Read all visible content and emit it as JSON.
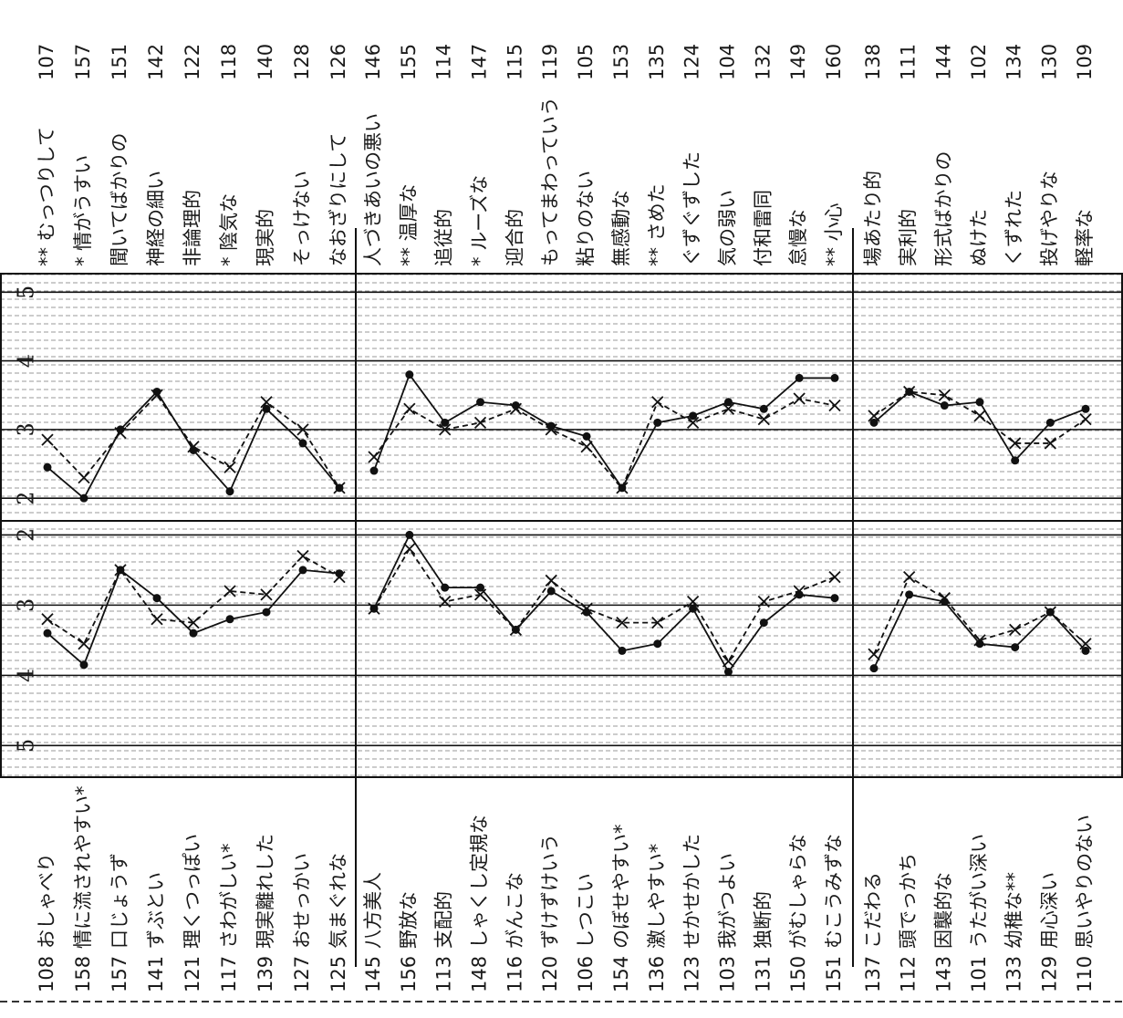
{
  "chart_data": [
    {
      "type": "line",
      "left_ids": [
        "108",
        "158",
        "157",
        "141",
        "121",
        "117",
        "139",
        "127",
        "125"
      ],
      "categories": [
        "おしゃべり",
        "情に流されやすい*",
        "口じょうず",
        "ずぶとい",
        "理くつっぽい",
        "さわがしい*",
        "現実離れした",
        "おせっかい",
        "気まぐれな"
      ],
      "right_labels": [
        "** むっつりして",
        "* 情がうすい",
        "聞いてばかりの",
        "神経の細い",
        "非論理的",
        "* 陰気な",
        "現実的",
        "そっけない",
        "なおざりにして"
      ],
      "right_ids": [
        "107",
        "157",
        "151",
        "142",
        "122",
        "118",
        "140",
        "128",
        "126"
      ],
      "upper": {
        "ylim": [
          1.67,
          5.27
        ],
        "yticks": [
          2,
          3,
          4,
          5
        ],
        "series": [
          {
            "marker": "dot",
            "dashed": false,
            "color": "#111111",
            "values": [
              2.45,
              2.0,
              3.0,
              3.55,
              2.7,
              2.1,
              3.3,
              2.8,
              2.15
            ]
          },
          {
            "marker": "x",
            "dashed": true,
            "color": "#111111",
            "values": [
              2.85,
              2.3,
              2.95,
              3.5,
              2.75,
              2.45,
              3.4,
              3.0,
              2.15
            ]
          }
        ]
      },
      "lower": {
        "ylim": [
          1.8,
          5.45
        ],
        "yticks": [
          2,
          3,
          4,
          5
        ],
        "inverted": true,
        "series": [
          {
            "marker": "dot",
            "dashed": false,
            "color": "#111111",
            "values": [
              3.4,
              3.85,
              2.5,
              2.9,
              3.4,
              3.2,
              3.1,
              2.5,
              2.55
            ]
          },
          {
            "marker": "x",
            "dashed": true,
            "color": "#111111",
            "values": [
              3.2,
              3.55,
              2.5,
              3.2,
              3.25,
              2.8,
              2.85,
              2.3,
              2.6
            ]
          }
        ]
      }
    },
    {
      "type": "line",
      "left_ids": [
        "145",
        "156",
        "113",
        "148",
        "116",
        "120",
        "106",
        "154",
        "136",
        "123",
        "103",
        "131",
        "150",
        "151"
      ],
      "categories": [
        "八方美人",
        "野放な",
        "支配的",
        "しゃくし定規な",
        "がんこな",
        "ずけずけいう",
        "しつこい",
        "のぼせやすい*",
        "激しやすい*",
        "せかせかした",
        "我がつよい",
        "独断的",
        "がむしゃらな",
        "むこうみずな"
      ],
      "right_labels": [
        "人づきあいの悪い",
        "** 温厚な",
        "追従的",
        "* ルーズな",
        "迎合的",
        "もってまわっていう",
        "粘りのない",
        "無感動な",
        "** さめた",
        "ぐずぐずした",
        "気の弱い",
        "付和雷同",
        "怠慢な",
        "** 小心"
      ],
      "right_ids": [
        "146",
        "155",
        "114",
        "147",
        "115",
        "119",
        "105",
        "153",
        "135",
        "124",
        "104",
        "132",
        "149",
        "160"
      ],
      "upper": {
        "ylim": [
          1.67,
          5.27
        ],
        "yticks": [
          2,
          3,
          4,
          5
        ],
        "series": [
          {
            "marker": "dot",
            "dashed": false,
            "color": "#111111",
            "values": [
              2.4,
              3.8,
              3.1,
              3.4,
              3.35,
              3.05,
              2.9,
              2.15,
              3.1,
              3.2,
              3.4,
              3.3,
              3.75,
              3.75
            ]
          },
          {
            "marker": "x",
            "dashed": true,
            "color": "#111111",
            "values": [
              2.6,
              3.3,
              3.0,
              3.1,
              3.3,
              3.0,
              2.75,
              2.15,
              3.4,
              3.1,
              3.3,
              3.15,
              3.45,
              3.35
            ]
          }
        ]
      },
      "lower": {
        "ylim": [
          1.8,
          5.45
        ],
        "yticks": [
          2,
          3,
          4,
          5
        ],
        "inverted": true,
        "series": [
          {
            "marker": "dot",
            "dashed": false,
            "color": "#111111",
            "values": [
              3.05,
              2.0,
              2.75,
              2.75,
              3.35,
              2.8,
              3.1,
              3.65,
              3.55,
              3.05,
              3.95,
              3.25,
              2.85,
              2.9
            ]
          },
          {
            "marker": "x",
            "dashed": true,
            "color": "#111111",
            "values": [
              3.05,
              2.2,
              2.95,
              2.85,
              3.35,
              2.65,
              3.05,
              3.25,
              3.25,
              2.95,
              3.8,
              2.95,
              2.8,
              2.6
            ]
          }
        ]
      }
    },
    {
      "type": "line",
      "left_ids": [
        "137",
        "112",
        "143",
        "101",
        "133",
        "129",
        "110"
      ],
      "categories": [
        "こだわる",
        "頭でっかち",
        "因襲的な",
        "うたがい深い",
        "幼稚な**",
        "用心深い",
        "思いやりのない"
      ],
      "right_labels": [
        "場あたり的",
        "実利的",
        "形式ばかりの",
        "ぬけた",
        "くずれた",
        "投げやりな",
        "軽率な"
      ],
      "right_ids": [
        "138",
        "111",
        "144",
        "102",
        "134",
        "130",
        "109"
      ],
      "upper": {
        "ylim": [
          1.67,
          5.27
        ],
        "yticks": [
          2,
          3,
          4,
          5
        ],
        "series": [
          {
            "marker": "dot",
            "dashed": false,
            "color": "#111111",
            "values": [
              3.1,
              3.55,
              3.35,
              3.4,
              2.55,
              3.1,
              3.3
            ]
          },
          {
            "marker": "x",
            "dashed": true,
            "color": "#111111",
            "values": [
              3.2,
              3.55,
              3.5,
              3.2,
              2.8,
              2.8,
              3.15
            ]
          }
        ]
      },
      "lower": {
        "ylim": [
          1.8,
          5.45
        ],
        "yticks": [
          2,
          3,
          4,
          5
        ],
        "inverted": true,
        "series": [
          {
            "marker": "dot",
            "dashed": false,
            "color": "#111111",
            "values": [
              3.9,
              2.85,
              2.95,
              3.55,
              3.6,
              3.1,
              3.65
            ]
          },
          {
            "marker": "x",
            "dashed": true,
            "color": "#111111",
            "values": [
              3.7,
              2.6,
              2.9,
              3.5,
              3.35,
              3.1,
              3.55
            ]
          }
        ]
      }
    }
  ]
}
